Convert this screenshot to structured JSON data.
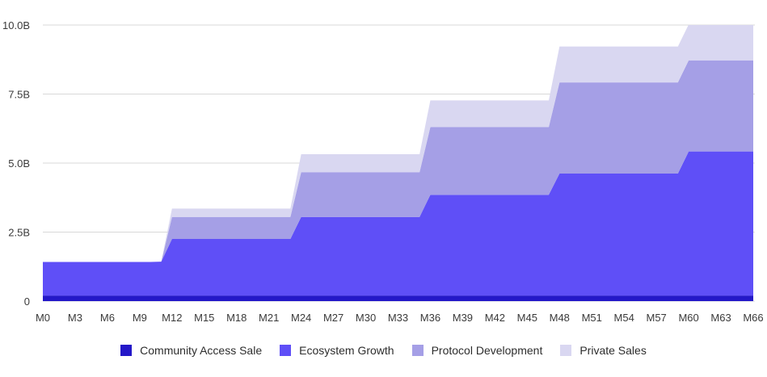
{
  "chart_data": {
    "type": "area",
    "x": [
      0,
      1,
      2,
      3,
      4,
      5,
      6,
      7,
      8,
      9,
      10,
      11,
      12,
      13,
      14,
      15,
      16,
      17,
      18,
      19,
      20,
      21,
      22,
      23,
      24,
      25,
      26,
      27,
      28,
      29,
      30,
      31,
      32,
      33,
      34,
      35,
      36,
      37,
      38,
      39,
      40,
      41,
      42,
      43,
      44,
      45,
      46,
      47,
      48,
      49,
      50,
      51,
      52,
      53,
      54,
      55,
      56,
      57,
      58,
      59,
      60,
      61,
      62,
      63,
      64,
      65,
      66
    ],
    "x_tick_labels": [
      "M0",
      "M3",
      "M6",
      "M9",
      "M12",
      "M15",
      "M18",
      "M21",
      "M24",
      "M27",
      "M30",
      "M33",
      "M36",
      "M39",
      "M42",
      "M45",
      "M48",
      "M51",
      "M54",
      "M57",
      "M60",
      "M63",
      "M66"
    ],
    "x_tick_values": [
      0,
      3,
      6,
      9,
      12,
      15,
      18,
      21,
      24,
      27,
      30,
      33,
      36,
      39,
      42,
      45,
      48,
      51,
      54,
      57,
      60,
      63,
      66
    ],
    "y_tick_labels": [
      "0",
      "2.5B",
      "5.0B",
      "7.5B",
      "10.0B"
    ],
    "y_tick_values": [
      0,
      2.5,
      5,
      7.5,
      10
    ],
    "ylim": [
      0,
      10
    ],
    "y_unit": "B",
    "grid": "horizontal",
    "legend_position": "bottom-center",
    "series": [
      {
        "name": "Community Access Sale",
        "color": "#2418c8",
        "values": [
          0.2,
          0.2,
          0.2,
          0.2,
          0.2,
          0.2,
          0.2,
          0.2,
          0.2,
          0.2,
          0.2,
          0.2,
          0.2,
          0.2,
          0.2,
          0.2,
          0.2,
          0.2,
          0.2,
          0.2,
          0.2,
          0.2,
          0.2,
          0.2,
          0.2,
          0.2,
          0.2,
          0.2,
          0.2,
          0.2,
          0.2,
          0.2,
          0.2,
          0.2,
          0.2,
          0.2,
          0.2,
          0.2,
          0.2,
          0.2,
          0.2,
          0.2,
          0.2,
          0.2,
          0.2,
          0.2,
          0.2,
          0.2,
          0.2,
          0.2,
          0.2,
          0.2,
          0.2,
          0.2,
          0.2,
          0.2,
          0.2,
          0.2,
          0.2,
          0.2,
          0.2,
          0.2,
          0.2,
          0.2,
          0.2,
          0.2,
          0.2
        ]
      },
      {
        "name": "Ecosystem Growth",
        "color": "#5f4ff7",
        "values": [
          1.22,
          1.22,
          1.22,
          1.22,
          1.22,
          1.22,
          1.22,
          1.22,
          1.22,
          1.22,
          1.22,
          1.23,
          2.05,
          2.05,
          2.05,
          2.05,
          2.05,
          2.05,
          2.05,
          2.05,
          2.05,
          2.05,
          2.05,
          2.05,
          2.85,
          2.85,
          2.85,
          2.85,
          2.85,
          2.85,
          2.85,
          2.85,
          2.85,
          2.85,
          2.85,
          2.85,
          3.65,
          3.65,
          3.65,
          3.65,
          3.65,
          3.65,
          3.65,
          3.65,
          3.65,
          3.65,
          3.65,
          3.65,
          4.42,
          4.42,
          4.42,
          4.42,
          4.42,
          4.42,
          4.42,
          4.42,
          4.42,
          4.42,
          4.42,
          4.42,
          5.22,
          5.22,
          5.22,
          5.22,
          5.22,
          5.22,
          5.22
        ]
      },
      {
        "name": "Protocol Development",
        "color": "#a59fe6",
        "values": [
          0,
          0,
          0,
          0,
          0,
          0,
          0,
          0,
          0,
          0,
          0,
          0,
          0.8,
          0.8,
          0.8,
          0.8,
          0.8,
          0.8,
          0.8,
          0.8,
          0.8,
          0.8,
          0.8,
          0.8,
          1.62,
          1.62,
          1.62,
          1.62,
          1.62,
          1.62,
          1.62,
          1.62,
          1.62,
          1.62,
          1.62,
          1.62,
          2.45,
          2.45,
          2.45,
          2.45,
          2.45,
          2.45,
          2.45,
          2.45,
          2.45,
          2.45,
          2.45,
          2.45,
          3.3,
          3.3,
          3.3,
          3.3,
          3.3,
          3.3,
          3.3,
          3.3,
          3.3,
          3.3,
          3.3,
          3.3,
          3.3,
          3.3,
          3.3,
          3.3,
          3.3,
          3.3,
          3.3
        ]
      },
      {
        "name": "Private Sales",
        "color": "#d9d7f1",
        "values": [
          0,
          0,
          0,
          0,
          0,
          0,
          0,
          0,
          0,
          0,
          0,
          0,
          0.3,
          0.3,
          0.3,
          0.3,
          0.3,
          0.3,
          0.3,
          0.3,
          0.3,
          0.3,
          0.3,
          0.3,
          0.65,
          0.65,
          0.65,
          0.65,
          0.65,
          0.65,
          0.65,
          0.65,
          0.65,
          0.65,
          0.65,
          0.65,
          0.97,
          0.97,
          0.97,
          0.97,
          0.97,
          0.97,
          0.97,
          0.97,
          0.97,
          0.97,
          0.97,
          0.97,
          1.3,
          1.3,
          1.3,
          1.3,
          1.3,
          1.3,
          1.3,
          1.3,
          1.3,
          1.3,
          1.3,
          1.3,
          1.3,
          1.3,
          1.3,
          1.3,
          1.3,
          1.3,
          1.3
        ]
      }
    ]
  }
}
